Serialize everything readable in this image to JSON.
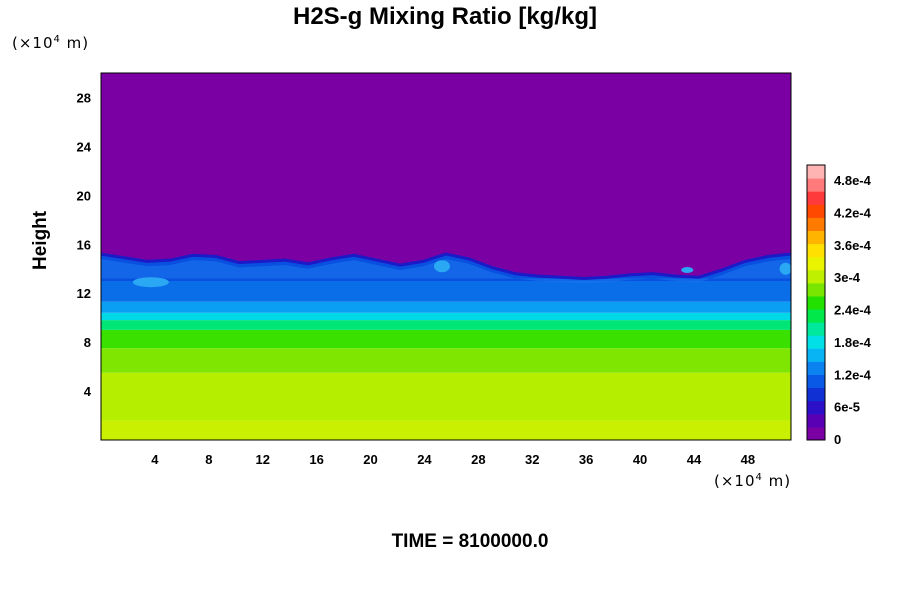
{
  "chart_data": {
    "type": "heatmap",
    "title": "H2S-g Mixing Ratio [kg/kg]",
    "xlabel": "",
    "ylabel": "Height",
    "x_unit": {
      "prefix": "(×10",
      "exp": "4",
      "suffix": " m)"
    },
    "y_unit": {
      "prefix": "(×10",
      "exp": "4",
      "suffix": " m)"
    },
    "xlim": [
      0,
      51.2
    ],
    "ylim": [
      0,
      30
    ],
    "x_ticks": [
      4,
      8,
      12,
      16,
      20,
      24,
      28,
      32,
      36,
      40,
      44,
      48
    ],
    "y_ticks": [
      4,
      8,
      12,
      16,
      20,
      24,
      28
    ],
    "footer": "TIME = 8100000.0",
    "colorbar": {
      "min": 0,
      "max": 0.00051,
      "tick_labels": [
        "0",
        "6e-5",
        "1.2e-4",
        "1.8e-4",
        "2.4e-4",
        "3e-4",
        "3.6e-4",
        "4.2e-4",
        "4.8e-4"
      ],
      "tick_values": [
        0,
        6e-05,
        0.00012,
        0.00018,
        0.00024,
        0.0003,
        0.00036,
        0.00042,
        0.00048
      ],
      "colors": [
        "#7a00a3",
        "#5a00b4",
        "#2c10c8",
        "#1030d4",
        "#0a58e6",
        "#0a82f0",
        "#08b4f4",
        "#00e0e6",
        "#00e89c",
        "#00e84a",
        "#22e000",
        "#78e600",
        "#bff000",
        "#eaf400",
        "#ffe000",
        "#ffb400",
        "#ff7a00",
        "#ff4800",
        "#ff3a3a",
        "#ff7a7a",
        "#ffb4b4"
      ]
    },
    "layers": [
      {
        "from_height": 0,
        "to_height": 1.6,
        "value": 0.00036,
        "color": "#c8f000"
      },
      {
        "from_height": 1.6,
        "to_height": 5.5,
        "value": 0.00033,
        "color": "#b6ee00"
      },
      {
        "from_height": 5.5,
        "to_height": 7.5,
        "value": 0.00029,
        "color": "#7ee600"
      },
      {
        "from_height": 7.5,
        "to_height": 9.0,
        "value": 0.00025,
        "color": "#3ae000"
      },
      {
        "from_height": 9.0,
        "to_height": 9.8,
        "value": 0.0002,
        "color": "#00e676"
      },
      {
        "from_height": 9.8,
        "to_height": 10.4,
        "value": 0.00017,
        "color": "#00d8e8"
      },
      {
        "from_height": 10.4,
        "to_height": 11.3,
        "value": 0.00013,
        "color": "#0a9ff2"
      },
      {
        "from_height": 11.3,
        "to_height": 14.0,
        "value": 0.0001,
        "color": "#0a6ee8"
      },
      {
        "from_height": 14.0,
        "to_height": 30,
        "value": 0,
        "color": "#7a00a3"
      }
    ],
    "top_boundary_heights": [
      15.2,
      14.9,
      14.6,
      14.7,
      15.1,
      15.0,
      14.5,
      14.6,
      14.7,
      14.4,
      14.8,
      15.1,
      14.7,
      14.3,
      14.6,
      15.2,
      14.8,
      14.1,
      13.6,
      13.4,
      13.3,
      13.2,
      13.3,
      13.5,
      13.6,
      13.4,
      13.3,
      13.9,
      14.6,
      15.0,
      15.2
    ]
  }
}
